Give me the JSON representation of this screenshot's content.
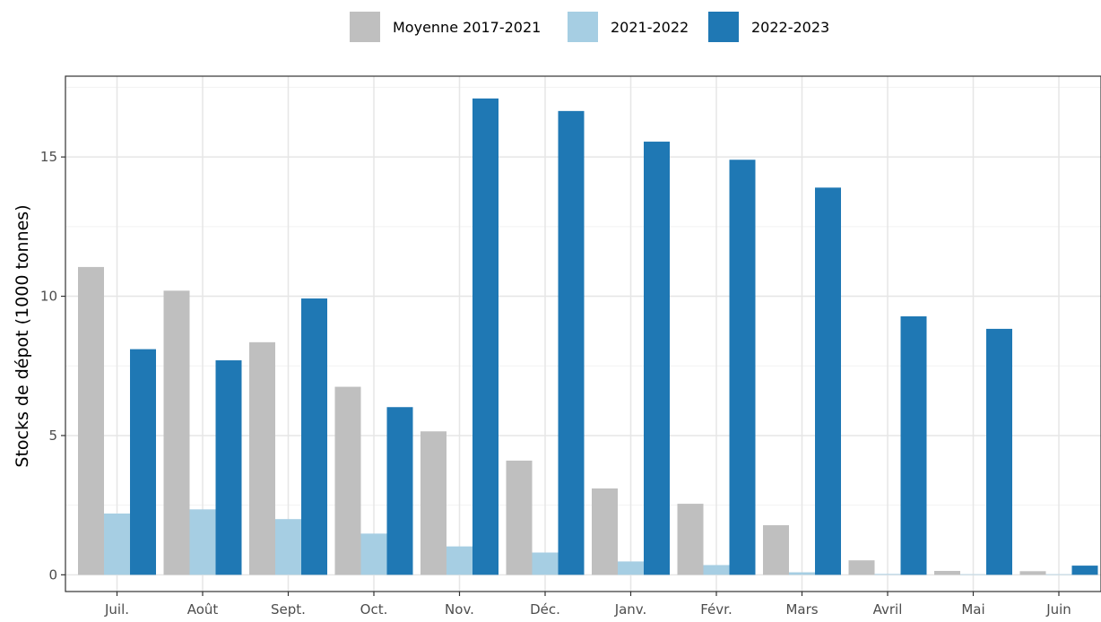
{
  "chart_data": {
    "type": "bar",
    "title": "",
    "xlabel": "",
    "ylabel": "Stocks de dépot (1000 tonnes)",
    "categories": [
      "Juil.",
      "Août",
      "Sept.",
      "Oct.",
      "Nov.",
      "Déc.",
      "Janv.",
      "Févr.",
      "Mars",
      "Avril",
      "Mai",
      "Juin"
    ],
    "series": [
      {
        "name": "Moyenne 2017-2021",
        "color": "#bfbfbf",
        "values": [
          11.05,
          10.2,
          8.35,
          6.75,
          5.15,
          4.1,
          3.1,
          2.55,
          1.78,
          0.52,
          0.14,
          0.13
        ]
      },
      {
        "name": "2021-2022",
        "color": "#a6cee3",
        "values": [
          2.2,
          2.35,
          2.0,
          1.48,
          1.02,
          0.8,
          0.48,
          0.35,
          0.09,
          0.03,
          0.02,
          0.02
        ]
      },
      {
        "name": "2022-2023",
        "color": "#1f78b4",
        "values": [
          8.1,
          7.7,
          9.92,
          6.02,
          17.1,
          16.65,
          15.55,
          14.9,
          13.9,
          9.28,
          8.83,
          0.33
        ]
      }
    ],
    "ylim": [
      -0.6,
      17.9
    ],
    "yticks": [
      0,
      5,
      10,
      15
    ],
    "grid": true,
    "legend": "top-center"
  }
}
